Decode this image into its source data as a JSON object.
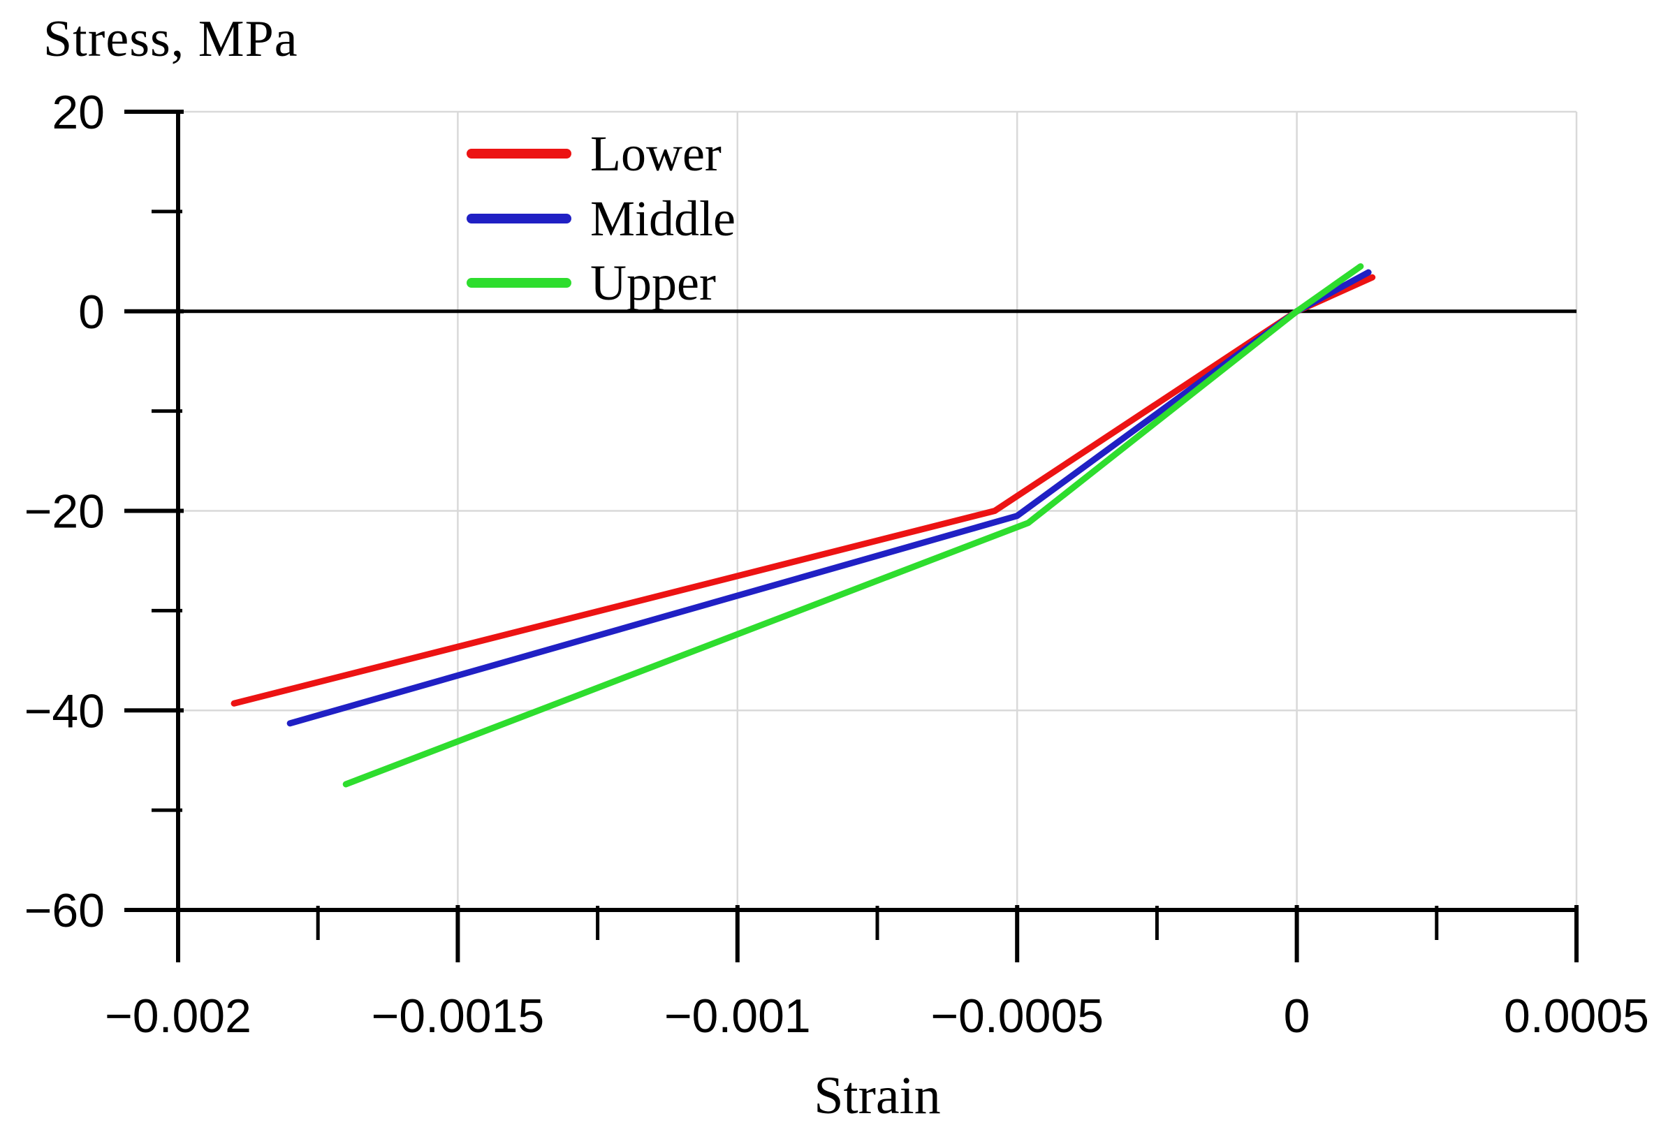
{
  "chart_data": {
    "type": "line",
    "y_axis_title": "Stress, MPa",
    "x_axis_title": "Strain",
    "xlim": [
      -0.002,
      0.0005
    ],
    "ylim": [
      -60,
      20
    ],
    "x_ticks": [
      -0.002,
      -0.0015,
      -0.001,
      -0.0005,
      0,
      0.0005
    ],
    "x_tick_labels": [
      "−0.002",
      "−0.0015",
      "−0.001",
      "−0.0005",
      "0",
      "0.0005"
    ],
    "x_minor_ticks": [
      -0.00175,
      -0.00125,
      -0.00075,
      -0.00025,
      0.00025
    ],
    "y_ticks": [
      20,
      0,
      -20,
      -40,
      -60
    ],
    "y_tick_labels": [
      "20",
      "0",
      "−20",
      "−40",
      "−60"
    ],
    "y_minor_ticks": [
      10,
      -10,
      -30,
      -50
    ],
    "grid_x_values": [
      -0.0015,
      -0.001,
      -0.0005,
      0,
      0.0005
    ],
    "grid_y_values": [
      20,
      -20,
      -40
    ],
    "zero_line_y": 0,
    "grid_on": true,
    "legend_position": "top-left-inside",
    "colors": {
      "grid": "#d9d9d9",
      "axis": "#000000",
      "zero_line": "#000000",
      "lower": "#ec1313",
      "middle": "#2020c4",
      "upper": "#2edd2e"
    },
    "series": [
      {
        "name": "Lower",
        "color": "#ec1313",
        "points": [
          [
            -0.0019,
            -39.3
          ],
          [
            -0.00054,
            -20.0
          ],
          [
            0,
            0
          ],
          [
            0.000135,
            3.4
          ]
        ]
      },
      {
        "name": "Middle",
        "color": "#2020c4",
        "points": [
          [
            -0.0018,
            -41.3
          ],
          [
            -0.0005,
            -20.5
          ],
          [
            0,
            0
          ],
          [
            0.000128,
            3.9
          ]
        ]
      },
      {
        "name": "Upper",
        "color": "#2edd2e",
        "points": [
          [
            -0.0017,
            -47.4
          ],
          [
            -0.00048,
            -21.2
          ],
          [
            0,
            0
          ],
          [
            0.000114,
            4.5
          ]
        ]
      }
    ]
  }
}
